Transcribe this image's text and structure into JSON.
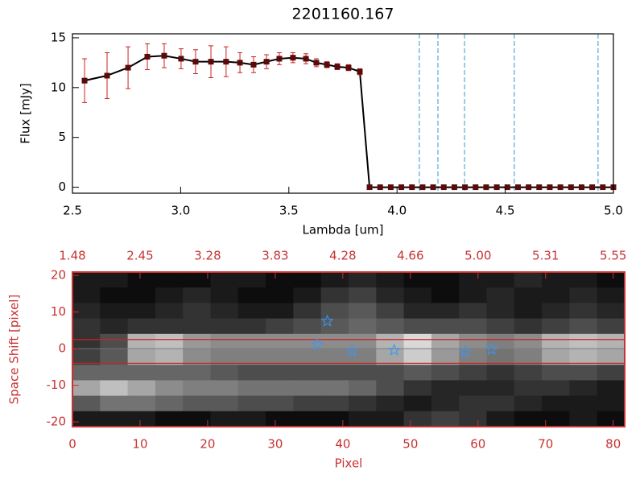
{
  "chart_data": [
    {
      "type": "line",
      "title": "2201160.167",
      "xlabel": "Lambda [um]",
      "ylabel": "Flux [mJy]",
      "axis_color": "#000000",
      "color": "#000000",
      "marker_color": "#5a0a0a",
      "error_color": "#cc2222",
      "x": [
        2.556,
        2.66,
        2.757,
        2.846,
        2.924,
        3.002,
        3.069,
        3.14,
        3.21,
        3.274,
        3.337,
        3.397,
        3.456,
        3.519,
        3.579,
        3.627,
        3.676,
        3.724,
        3.776,
        3.828,
        3.873,
        3.922,
        3.971,
        4.02,
        4.069,
        4.118,
        4.167,
        4.216,
        4.265,
        4.314,
        4.363,
        4.412,
        4.461,
        4.51,
        4.559,
        4.608,
        4.657,
        4.706,
        4.755,
        4.804,
        4.853,
        4.902,
        4.951,
        5.0
      ],
      "values": [
        10.7,
        11.2,
        12.0,
        13.1,
        13.2,
        12.9,
        12.6,
        12.6,
        12.6,
        12.5,
        12.3,
        12.6,
        12.9,
        13.0,
        12.9,
        12.5,
        12.3,
        12.1,
        12.0,
        11.6,
        0,
        0,
        0,
        0,
        0,
        0,
        0,
        0,
        0,
        0,
        0,
        0,
        0,
        0,
        0,
        0,
        0,
        0,
        0,
        0,
        0,
        0,
        0,
        0
      ],
      "errors": [
        2.2,
        2.3,
        2.1,
        1.3,
        1.2,
        1.0,
        1.2,
        1.6,
        1.5,
        1.0,
        0.8,
        0.7,
        0.6,
        0.5,
        0.5,
        0.4,
        0.3,
        0.3,
        0.3,
        0.3,
        0,
        0,
        0,
        0,
        0,
        0,
        0,
        0,
        0,
        0,
        0,
        0,
        0,
        0,
        0,
        0,
        0,
        0,
        0,
        0,
        0,
        0,
        0,
        0
      ],
      "vlines": [
        4.103,
        4.189,
        4.312,
        4.542,
        4.929
      ],
      "vline_color": "#3399cc",
      "xlim": [
        2.5,
        5.0
      ],
      "xticks": [
        2.5,
        {
          "value": 3,
          "label": "3.0"
        },
        3.5,
        {
          "value": 4,
          "label": "4.0"
        },
        4.5,
        {
          "value": 5,
          "label": "5.0"
        }
      ],
      "ylim": [
        -0.6,
        15.4
      ],
      "yticks": [
        0,
        5,
        10,
        15
      ]
    },
    {
      "type": "image",
      "xlabel": "Pixel",
      "ylabel": "Space Shift [pixel]",
      "axis_color": "#c83232",
      "xlim": [
        0,
        81.7
      ],
      "xticks": [
        0,
        10,
        20,
        30,
        40,
        50,
        60,
        70,
        80
      ],
      "x2ticks": [
        {
          "value": 0,
          "label": "1.48"
        },
        {
          "value": 10,
          "label": "2.45"
        },
        {
          "value": 20,
          "label": "3.28"
        },
        {
          "value": 30,
          "label": "3.83"
        },
        {
          "value": 40,
          "label": "4.28"
        },
        {
          "value": 50,
          "label": "4.66"
        },
        {
          "value": 60,
          "label": "5.00"
        },
        {
          "value": 70,
          "label": "5.31"
        },
        {
          "value": 80,
          "label": "5.55"
        }
      ],
      "ylim": [
        -21.3,
        20.9
      ],
      "yticks": [
        -20,
        -10,
        0,
        10,
        20
      ],
      "image": [
        [
          10,
          10,
          5,
          5,
          5,
          10,
          10,
          5,
          5,
          10,
          15,
          10,
          5,
          5,
          10,
          10,
          15,
          10,
          10,
          5
        ],
        [
          10,
          5,
          5,
          10,
          15,
          10,
          5,
          5,
          10,
          20,
          25,
          15,
          10,
          5,
          10,
          15,
          10,
          10,
          15,
          10
        ],
        [
          15,
          10,
          10,
          15,
          20,
          15,
          10,
          10,
          20,
          30,
          35,
          25,
          15,
          15,
          20,
          15,
          10,
          15,
          20,
          15
        ],
        [
          20,
          15,
          20,
          20,
          20,
          20,
          20,
          25,
          30,
          35,
          40,
          35,
          30,
          30,
          30,
          25,
          20,
          25,
          30,
          25
        ],
        [
          20,
          30,
          70,
          75,
          60,
          55,
          55,
          55,
          55,
          55,
          55,
          70,
          85,
          65,
          55,
          50,
          55,
          70,
          75,
          70
        ],
        [
          25,
          35,
          65,
          70,
          55,
          50,
          50,
          50,
          50,
          50,
          50,
          65,
          80,
          60,
          50,
          45,
          50,
          65,
          70,
          65
        ],
        [
          40,
          40,
          40,
          40,
          40,
          35,
          30,
          30,
          30,
          30,
          30,
          30,
          35,
          30,
          25,
          20,
          25,
          30,
          30,
          25
        ],
        [
          65,
          75,
          65,
          55,
          50,
          50,
          45,
          45,
          45,
          45,
          40,
          30,
          20,
          15,
          15,
          15,
          20,
          20,
          15,
          10
        ],
        [
          35,
          45,
          45,
          40,
          35,
          35,
          30,
          30,
          25,
          25,
          20,
          15,
          10,
          15,
          20,
          20,
          15,
          10,
          10,
          10
        ],
        [
          10,
          10,
          10,
          5,
          5,
          10,
          10,
          5,
          5,
          5,
          10,
          10,
          20,
          25,
          20,
          10,
          5,
          5,
          10,
          5
        ]
      ],
      "hlines": [
        2.5,
        -4
      ],
      "hline_color": "#cc2222",
      "centerline": 0,
      "centerline_color": "#777777",
      "points": {
        "x": [
          37.7,
          36.2,
          41.4,
          47.6,
          58.1,
          62.0
        ],
        "y": [
          7.5,
          1.1,
          -0.7,
          -0.4,
          -0.9,
          -0.2
        ],
        "color": "#3399ff"
      }
    }
  ]
}
